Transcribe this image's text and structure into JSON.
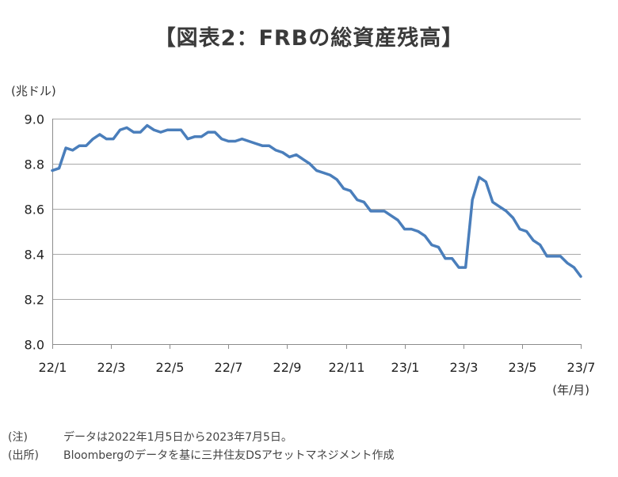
{
  "chart_data": {
    "type": "line",
    "title": "【図表2：FRBの総資産残高】",
    "ylabel": "(兆ドル)",
    "xlabel": "(年/月)",
    "ylim": [
      8.0,
      9.0
    ],
    "yticks": [
      "9.0",
      "8.8",
      "8.6",
      "8.4",
      "8.2",
      "8.0"
    ],
    "xticks": [
      "22/1",
      "22/3",
      "22/5",
      "22/7",
      "22/9",
      "22/11",
      "23/1",
      "23/3",
      "23/5",
      "23/7"
    ],
    "grid": true,
    "legend": "none",
    "series": [
      {
        "color": "#4a7ebb",
        "x": [
          "2022-01-05",
          "2022-01-12",
          "2022-01-19",
          "2022-01-26",
          "2022-02-02",
          "2022-02-09",
          "2022-02-16",
          "2022-02-23",
          "2022-03-02",
          "2022-03-09",
          "2022-03-16",
          "2022-03-23",
          "2022-03-30",
          "2022-04-06",
          "2022-04-13",
          "2022-04-20",
          "2022-04-27",
          "2022-05-04",
          "2022-05-11",
          "2022-05-18",
          "2022-05-25",
          "2022-06-01",
          "2022-06-08",
          "2022-06-15",
          "2022-06-22",
          "2022-06-29",
          "2022-07-06",
          "2022-07-13",
          "2022-07-20",
          "2022-07-27",
          "2022-08-03",
          "2022-08-10",
          "2022-08-17",
          "2022-08-24",
          "2022-08-31",
          "2022-09-07",
          "2022-09-14",
          "2022-09-21",
          "2022-09-28",
          "2022-10-05",
          "2022-10-12",
          "2022-10-19",
          "2022-10-26",
          "2022-11-02",
          "2022-11-09",
          "2022-11-16",
          "2022-11-23",
          "2022-11-30",
          "2022-12-07",
          "2022-12-14",
          "2022-12-21",
          "2022-12-28",
          "2023-01-04",
          "2023-01-11",
          "2023-01-18",
          "2023-01-25",
          "2023-02-01",
          "2023-02-08",
          "2023-02-15",
          "2023-02-22",
          "2023-03-01",
          "2023-03-08",
          "2023-03-15",
          "2023-03-22",
          "2023-03-29",
          "2023-04-05",
          "2023-04-12",
          "2023-04-19",
          "2023-04-26",
          "2023-05-03",
          "2023-05-10",
          "2023-05-17",
          "2023-05-24",
          "2023-05-31",
          "2023-06-07",
          "2023-06-14",
          "2023-06-21",
          "2023-06-28",
          "2023-07-05"
        ],
        "y": [
          8.77,
          8.78,
          8.87,
          8.86,
          8.88,
          8.88,
          8.91,
          8.93,
          8.91,
          8.91,
          8.95,
          8.96,
          8.94,
          8.94,
          8.97,
          8.95,
          8.94,
          8.95,
          8.95,
          8.95,
          8.91,
          8.92,
          8.92,
          8.94,
          8.94,
          8.91,
          8.9,
          8.9,
          8.91,
          8.9,
          8.89,
          8.88,
          8.88,
          8.86,
          8.85,
          8.83,
          8.84,
          8.82,
          8.8,
          8.77,
          8.76,
          8.75,
          8.73,
          8.69,
          8.68,
          8.64,
          8.63,
          8.59,
          8.59,
          8.59,
          8.57,
          8.55,
          8.51,
          8.51,
          8.5,
          8.48,
          8.44,
          8.43,
          8.38,
          8.38,
          8.34,
          8.34,
          8.64,
          8.74,
          8.72,
          8.63,
          8.61,
          8.59,
          8.56,
          8.51,
          8.5,
          8.46,
          8.44,
          8.39,
          8.39,
          8.39,
          8.36,
          8.34,
          8.3
        ]
      }
    ]
  },
  "notes": [
    {
      "label": "(注)",
      "text": "データは2022年1月5日から2023年7月5日。"
    },
    {
      "label": "(出所)",
      "text": "Bloombergのデータを基に三井住友DSアセットマネジメント作成"
    }
  ]
}
